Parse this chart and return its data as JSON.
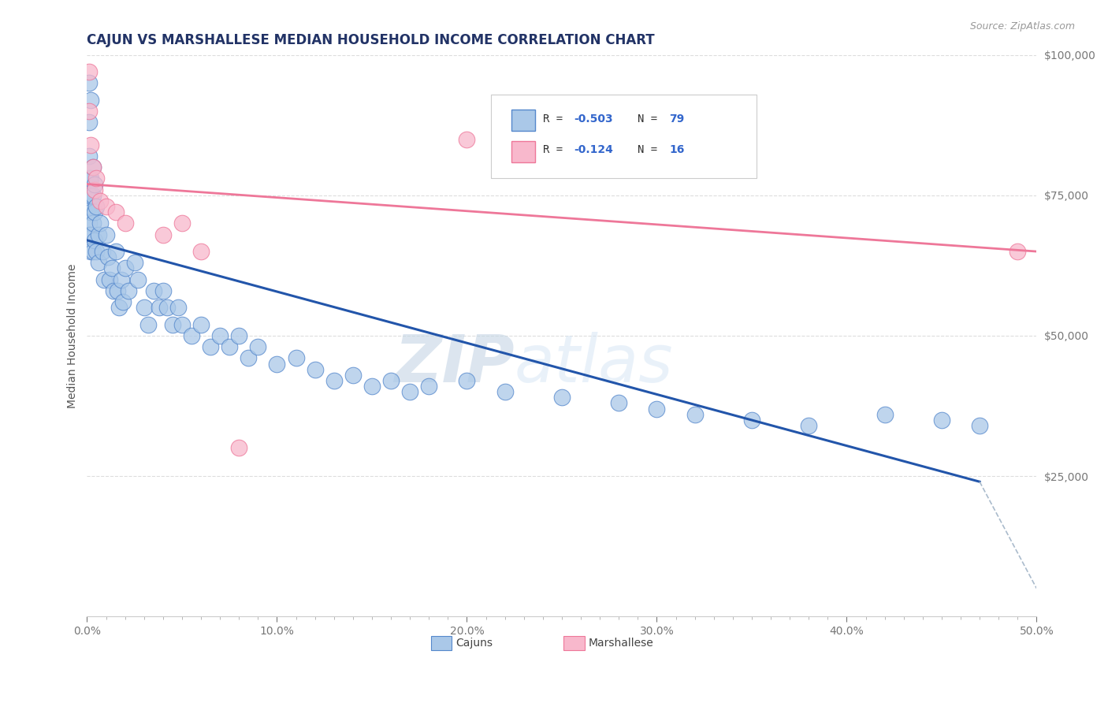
{
  "title": "CAJUN VS MARSHALLESE MEDIAN HOUSEHOLD INCOME CORRELATION CHART",
  "source_text": "Source: ZipAtlas.com",
  "ylabel_text": "Median Household Income",
  "xlim": [
    0.0,
    0.5
  ],
  "ylim": [
    0,
    100000
  ],
  "xtick_labels": [
    "0.0%",
    "",
    "",
    "",
    "",
    "",
    "",
    "",
    "",
    "",
    "10.0%",
    "",
    "",
    "",
    "",
    "",
    "",
    "",
    "",
    "",
    "20.0%",
    "",
    "",
    "",
    "",
    "",
    "",
    "",
    "",
    "",
    "30.0%",
    "",
    "",
    "",
    "",
    "",
    "",
    "",
    "",
    "",
    "40.0%",
    "",
    "",
    "",
    "",
    "",
    "",
    "",
    "",
    "",
    "50.0%"
  ],
  "xtick_positions": [
    0.0,
    0.01,
    0.02,
    0.03,
    0.04,
    0.05,
    0.06,
    0.07,
    0.08,
    0.09,
    0.1,
    0.11,
    0.12,
    0.13,
    0.14,
    0.15,
    0.16,
    0.17,
    0.18,
    0.19,
    0.2,
    0.21,
    0.22,
    0.23,
    0.24,
    0.25,
    0.26,
    0.27,
    0.28,
    0.29,
    0.3,
    0.31,
    0.32,
    0.33,
    0.34,
    0.35,
    0.36,
    0.37,
    0.38,
    0.39,
    0.4,
    0.41,
    0.42,
    0.43,
    0.44,
    0.45,
    0.46,
    0.47,
    0.48,
    0.49,
    0.5
  ],
  "ytick_labels": [
    "$25,000",
    "$50,000",
    "$75,000",
    "$100,000"
  ],
  "ytick_positions": [
    25000,
    50000,
    75000,
    100000
  ],
  "cajun_color": "#aac8e8",
  "cajun_edge_color": "#5588cc",
  "marshallese_color": "#f8b8cc",
  "marshallese_edge_color": "#ee7799",
  "blue_line_color": "#2255aa",
  "pink_line_color": "#ee7799",
  "dashed_line_color": "#aabbcc",
  "watermark_zip": "#c8d8e8",
  "watermark_atlas": "#d0e0f0",
  "background_color": "#ffffff",
  "grid_color": "#dddddd",
  "title_color": "#223366",
  "ytick_color": "#3366cc",
  "source_color": "#999999",
  "cajun_points": [
    [
      0.001,
      95000
    ],
    [
      0.001,
      88000
    ],
    [
      0.001,
      82000
    ],
    [
      0.001,
      78000
    ],
    [
      0.001,
      75000
    ],
    [
      0.001,
      73000
    ],
    [
      0.001,
      70000
    ],
    [
      0.001,
      68000
    ],
    [
      0.002,
      92000
    ],
    [
      0.002,
      78000
    ],
    [
      0.002,
      75000
    ],
    [
      0.002,
      72000
    ],
    [
      0.002,
      68000
    ],
    [
      0.002,
      65000
    ],
    [
      0.003,
      80000
    ],
    [
      0.003,
      75000
    ],
    [
      0.003,
      70000
    ],
    [
      0.003,
      65000
    ],
    [
      0.004,
      77000
    ],
    [
      0.004,
      72000
    ],
    [
      0.004,
      67000
    ],
    [
      0.005,
      73000
    ],
    [
      0.005,
      65000
    ],
    [
      0.006,
      68000
    ],
    [
      0.006,
      63000
    ],
    [
      0.007,
      70000
    ],
    [
      0.008,
      65000
    ],
    [
      0.009,
      60000
    ],
    [
      0.01,
      68000
    ],
    [
      0.011,
      64000
    ],
    [
      0.012,
      60000
    ],
    [
      0.013,
      62000
    ],
    [
      0.014,
      58000
    ],
    [
      0.015,
      65000
    ],
    [
      0.016,
      58000
    ],
    [
      0.017,
      55000
    ],
    [
      0.018,
      60000
    ],
    [
      0.019,
      56000
    ],
    [
      0.02,
      62000
    ],
    [
      0.022,
      58000
    ],
    [
      0.025,
      63000
    ],
    [
      0.027,
      60000
    ],
    [
      0.03,
      55000
    ],
    [
      0.032,
      52000
    ],
    [
      0.035,
      58000
    ],
    [
      0.038,
      55000
    ],
    [
      0.04,
      58000
    ],
    [
      0.042,
      55000
    ],
    [
      0.045,
      52000
    ],
    [
      0.048,
      55000
    ],
    [
      0.05,
      52000
    ],
    [
      0.055,
      50000
    ],
    [
      0.06,
      52000
    ],
    [
      0.065,
      48000
    ],
    [
      0.07,
      50000
    ],
    [
      0.075,
      48000
    ],
    [
      0.08,
      50000
    ],
    [
      0.085,
      46000
    ],
    [
      0.09,
      48000
    ],
    [
      0.1,
      45000
    ],
    [
      0.11,
      46000
    ],
    [
      0.12,
      44000
    ],
    [
      0.13,
      42000
    ],
    [
      0.14,
      43000
    ],
    [
      0.15,
      41000
    ],
    [
      0.16,
      42000
    ],
    [
      0.17,
      40000
    ],
    [
      0.18,
      41000
    ],
    [
      0.2,
      42000
    ],
    [
      0.22,
      40000
    ],
    [
      0.25,
      39000
    ],
    [
      0.28,
      38000
    ],
    [
      0.3,
      37000
    ],
    [
      0.32,
      36000
    ],
    [
      0.35,
      35000
    ],
    [
      0.38,
      34000
    ],
    [
      0.42,
      36000
    ],
    [
      0.45,
      35000
    ],
    [
      0.47,
      34000
    ]
  ],
  "marshallese_points": [
    [
      0.001,
      97000
    ],
    [
      0.001,
      90000
    ],
    [
      0.002,
      84000
    ],
    [
      0.003,
      80000
    ],
    [
      0.004,
      76000
    ],
    [
      0.005,
      78000
    ],
    [
      0.007,
      74000
    ],
    [
      0.01,
      73000
    ],
    [
      0.015,
      72000
    ],
    [
      0.02,
      70000
    ],
    [
      0.04,
      68000
    ],
    [
      0.05,
      70000
    ],
    [
      0.06,
      65000
    ],
    [
      0.2,
      85000
    ],
    [
      0.08,
      30000
    ],
    [
      0.49,
      65000
    ]
  ],
  "blue_line_x": [
    0.0,
    0.47
  ],
  "blue_line_y": [
    67000,
    24000
  ],
  "pink_line_x": [
    0.0,
    0.5
  ],
  "pink_line_y": [
    77000,
    65000
  ],
  "dashed_line_x": [
    0.47,
    0.5
  ],
  "dashed_line_y": [
    24000,
    5000
  ]
}
